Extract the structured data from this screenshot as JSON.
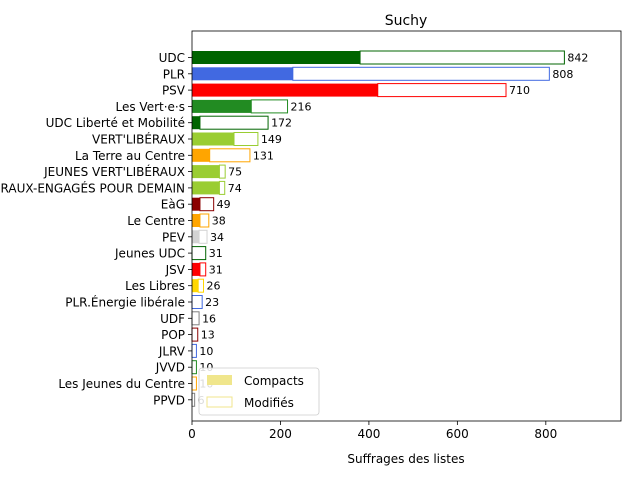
{
  "chart_data": {
    "type": "bar",
    "orientation": "horizontal",
    "stacked": true,
    "title": "Suchy",
    "xlabel": "Suffrages des listes",
    "ylabel": "",
    "xlim": [
      0,
      970
    ],
    "xticks": [
      0,
      200,
      400,
      600,
      800
    ],
    "grid": false,
    "legend": {
      "placement": "lower-left",
      "entries": [
        "Compacts",
        "Modifiés"
      ],
      "swatch_fill": "#f0e68c",
      "swatch_edge": "#f0e68c"
    },
    "categories": [
      {
        "name": "UDC",
        "total": 842,
        "compact": 380,
        "color": "#006400"
      },
      {
        "name": "PLR",
        "total": 808,
        "compact": 228,
        "color": "#4169e1"
      },
      {
        "name": "PSV",
        "total": 710,
        "compact": 420,
        "color": "#ff0000"
      },
      {
        "name": "Les Vert·e·s",
        "total": 216,
        "compact": 134,
        "color": "#228b22"
      },
      {
        "name": "UDC Liberté et Mobilité",
        "total": 172,
        "compact": 18,
        "color": "#006400"
      },
      {
        "name": "VERT'LIBÉRAUX",
        "total": 149,
        "compact": 95,
        "color": "#9acd32"
      },
      {
        "name": "La Terre au Centre",
        "total": 131,
        "compact": 40,
        "color": "#ffa500"
      },
      {
        "name": "JEUNES VERT'LIBÉRAUX",
        "total": 75,
        "compact": 62,
        "color": "#9acd32"
      },
      {
        "name": "VERT'LIBÉRAUX-ENGAGÉS POUR DEMAIN",
        "total": 74,
        "compact": 62,
        "color": "#9acd32"
      },
      {
        "name": "EàG",
        "total": 49,
        "compact": 18,
        "color": "#8b0000"
      },
      {
        "name": "Le Centre",
        "total": 38,
        "compact": 18,
        "color": "#ffa500"
      },
      {
        "name": "PEV",
        "total": 34,
        "compact": 16,
        "color": "#d3d3d3"
      },
      {
        "name": "Jeunes UDC",
        "total": 31,
        "compact": 0,
        "color": "#006400"
      },
      {
        "name": "JSV",
        "total": 31,
        "compact": 18,
        "color": "#ff0000"
      },
      {
        "name": "Les Libres",
        "total": 26,
        "compact": 14,
        "color": "#ffd700"
      },
      {
        "name": "PLR.Énergie libérale",
        "total": 23,
        "compact": 0,
        "color": "#4169e1"
      },
      {
        "name": "UDF",
        "total": 16,
        "compact": 0,
        "color": "#808080"
      },
      {
        "name": "POP",
        "total": 13,
        "compact": 0,
        "color": "#8b0000"
      },
      {
        "name": "JLRV",
        "total": 10,
        "compact": 0,
        "color": "#4169e1"
      },
      {
        "name": "JVVD",
        "total": 10,
        "compact": 0,
        "color": "#228b22"
      },
      {
        "name": "Les Jeunes du Centre",
        "total": 10,
        "compact": 0,
        "color": "#ffa500"
      },
      {
        "name": "PPVD",
        "total": 6,
        "compact": 0,
        "color": "#808080"
      }
    ]
  }
}
